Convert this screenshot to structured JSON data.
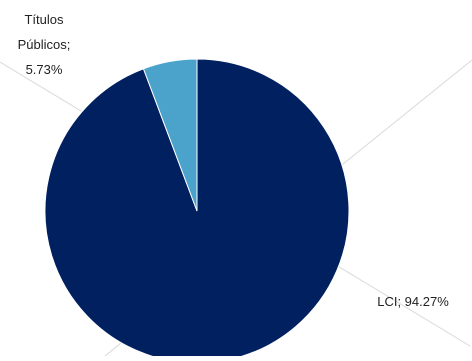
{
  "chart_data": {
    "type": "pie",
    "title": "",
    "slices": [
      {
        "label_lines": [
          "LCI; 94.27%"
        ],
        "category": "LCI",
        "value": 94.27,
        "color": "#002060"
      },
      {
        "label_lines": [
          "Títulos",
          "Públicos;",
          "5.73%"
        ],
        "category": "Títulos Públicos",
        "value": 5.73,
        "color": "#4BA3CC"
      }
    ],
    "legend": "none",
    "leader_line_color": "#d9d9d9"
  }
}
